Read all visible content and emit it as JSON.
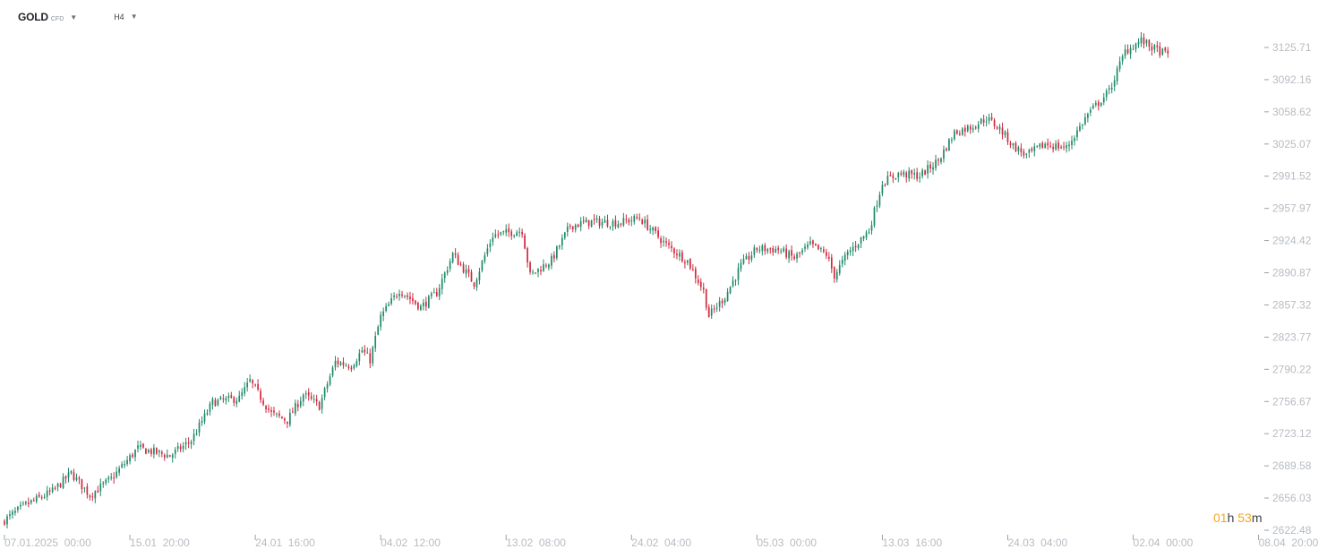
{
  "toolbar": {
    "symbol": "GOLD",
    "symbol_sub": "CFD",
    "timeframe": "H4",
    "caret": "▼"
  },
  "countdown": {
    "hours": "01",
    "h_unit": "h",
    "minutes": "53",
    "m_unit": "m"
  },
  "colors": {
    "up": "#1f8a6a",
    "down": "#d1293d",
    "axis_text": "#b7bcc2",
    "countdown": "#f5a623"
  },
  "chart_data": {
    "type": "candlestick",
    "title": "",
    "xlabel": "",
    "ylabel": "",
    "ylim": [
      2622.48,
      3159.26
    ],
    "yticks": [
      "3125.71",
      "3092.16",
      "3058.62",
      "3025.07",
      "2991.52",
      "2957.97",
      "2924.42",
      "2890.87",
      "2857.32",
      "2823.77",
      "2790.22",
      "2756.67",
      "2723.12",
      "2689.58",
      "2656.03",
      "2622.48"
    ],
    "xticks": [
      {
        "date": "07.01.2025",
        "time": "00:00",
        "bar": 0
      },
      {
        "date": "15.01",
        "time": "20:00",
        "bar": 47
      },
      {
        "date": "24.01",
        "time": "16:00",
        "bar": 94
      },
      {
        "date": "04.02",
        "time": "12:00",
        "bar": 141
      },
      {
        "date": "13.02",
        "time": "08:00",
        "bar": 188
      },
      {
        "date": "24.02",
        "time": "04:00",
        "bar": 235
      },
      {
        "date": "05.03",
        "time": "00:00",
        "bar": 282
      },
      {
        "date": "13.03",
        "time": "16:00",
        "bar": 329
      },
      {
        "date": "24.03",
        "time": "04:00",
        "bar": 376
      },
      {
        "date": "02.04",
        "time": "00:00",
        "bar": 423
      },
      {
        "date": "08.04",
        "time": "20:00",
        "bar": 470
      }
    ],
    "series": [
      {
        "close_path": [
          [
            0,
            2633
          ],
          [
            8,
            2649
          ],
          [
            18,
            2663
          ],
          [
            25,
            2682
          ],
          [
            32,
            2659
          ],
          [
            40,
            2676
          ],
          [
            50,
            2708
          ],
          [
            62,
            2700
          ],
          [
            70,
            2716
          ],
          [
            78,
            2756
          ],
          [
            88,
            2760
          ],
          [
            92,
            2778
          ],
          [
            100,
            2744
          ],
          [
            106,
            2737
          ],
          [
            112,
            2764
          ],
          [
            118,
            2752
          ],
          [
            124,
            2798
          ],
          [
            130,
            2794
          ],
          [
            134,
            2810
          ],
          [
            137,
            2800
          ],
          [
            141,
            2845
          ],
          [
            148,
            2873
          ],
          [
            156,
            2855
          ],
          [
            162,
            2870
          ],
          [
            168,
            2910
          ],
          [
            176,
            2880
          ],
          [
            183,
            2930
          ],
          [
            194,
            2935
          ],
          [
            197,
            2888
          ],
          [
            205,
            2904
          ],
          [
            212,
            2940
          ],
          [
            220,
            2944
          ],
          [
            230,
            2943
          ],
          [
            238,
            2948
          ],
          [
            248,
            2920
          ],
          [
            256,
            2903
          ],
          [
            262,
            2872
          ],
          [
            264,
            2846
          ],
          [
            270,
            2866
          ],
          [
            276,
            2898
          ],
          [
            282,
            2916
          ],
          [
            290,
            2915
          ],
          [
            296,
            2906
          ],
          [
            302,
            2920
          ],
          [
            308,
            2910
          ],
          [
            311,
            2888
          ],
          [
            316,
            2911
          ],
          [
            324,
            2935
          ],
          [
            329,
            2985
          ],
          [
            335,
            2994
          ],
          [
            343,
            2992
          ],
          [
            350,
            3008
          ],
          [
            356,
            3037
          ],
          [
            363,
            3044
          ],
          [
            368,
            3052
          ],
          [
            373,
            3041
          ],
          [
            378,
            3023
          ],
          [
            383,
            3013
          ],
          [
            390,
            3025
          ],
          [
            398,
            3021
          ],
          [
            406,
            3056
          ],
          [
            414,
            3080
          ],
          [
            420,
            3122
          ],
          [
            426,
            3133
          ],
          [
            431,
            3124
          ],
          [
            436,
            3118
          ]
        ]
      }
    ]
  }
}
